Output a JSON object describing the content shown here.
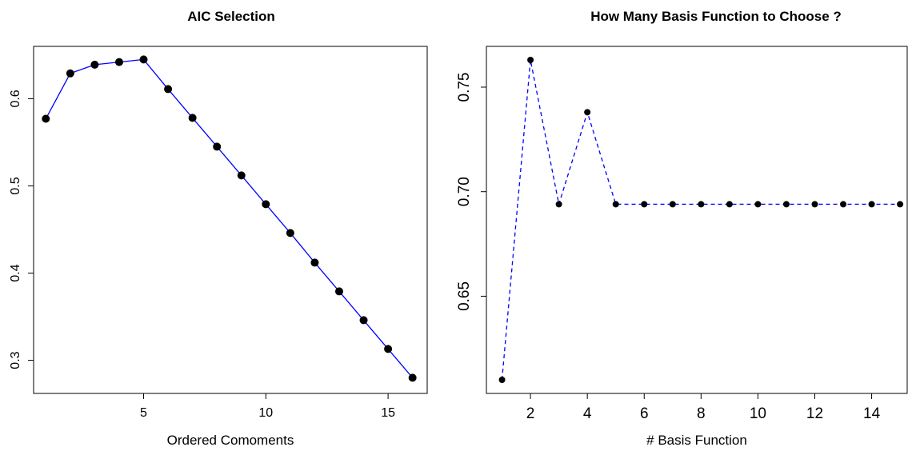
{
  "chart_data": [
    {
      "type": "line",
      "title": "AIC Selection",
      "xlabel": "Ordered Comoments",
      "ylabel": "",
      "xlim": [
        0.5,
        16.6
      ],
      "ylim": [
        0.262,
        0.66
      ],
      "x_ticks": [
        5,
        10,
        15
      ],
      "x_tick_labels": [
        "5",
        "10",
        "15"
      ],
      "y_ticks": [
        0.3,
        0.4,
        0.5,
        0.6
      ],
      "y_tick_labels": [
        "0.3",
        "0.4",
        "0.5",
        "0.6"
      ],
      "line_style": "solid",
      "line_color": "#0000ff",
      "marker_color": "#000000",
      "grid": false,
      "x": [
        1,
        2,
        3,
        4,
        5,
        6,
        7,
        8,
        9,
        10,
        11,
        12,
        13,
        14,
        15,
        16
      ],
      "series": [
        {
          "values": [
            0.577,
            0.629,
            0.639,
            0.642,
            0.645,
            0.611,
            0.578,
            0.545,
            0.512,
            0.479,
            0.446,
            0.412,
            0.379,
            0.346,
            0.313,
            0.28
          ]
        }
      ]
    },
    {
      "type": "line",
      "title": "How Many Basis Function to Choose ?",
      "xlabel": "# Basis Function",
      "ylabel": "",
      "xlim": [
        0.45,
        15.25
      ],
      "ylim": [
        0.6035,
        0.7695
      ],
      "x_ticks": [
        2,
        4,
        6,
        8,
        10,
        12,
        14
      ],
      "x_tick_labels": [
        "2",
        "4",
        "6",
        "8",
        "10",
        "12",
        "14"
      ],
      "y_ticks": [
        0.65,
        0.7,
        0.75
      ],
      "y_tick_labels": [
        "0.65",
        "0.70",
        "0.75"
      ],
      "line_style": "dashed",
      "line_color": "#0000ff",
      "marker_color": "#000000",
      "grid": false,
      "x": [
        1,
        2,
        3,
        4,
        5,
        6,
        7,
        8,
        9,
        10,
        11,
        12,
        13,
        14,
        15
      ],
      "series": [
        {
          "values": [
            0.61,
            0.763,
            0.694,
            0.738,
            0.694,
            0.694,
            0.694,
            0.694,
            0.694,
            0.694,
            0.694,
            0.694,
            0.694,
            0.694,
            0.694
          ]
        }
      ]
    }
  ]
}
